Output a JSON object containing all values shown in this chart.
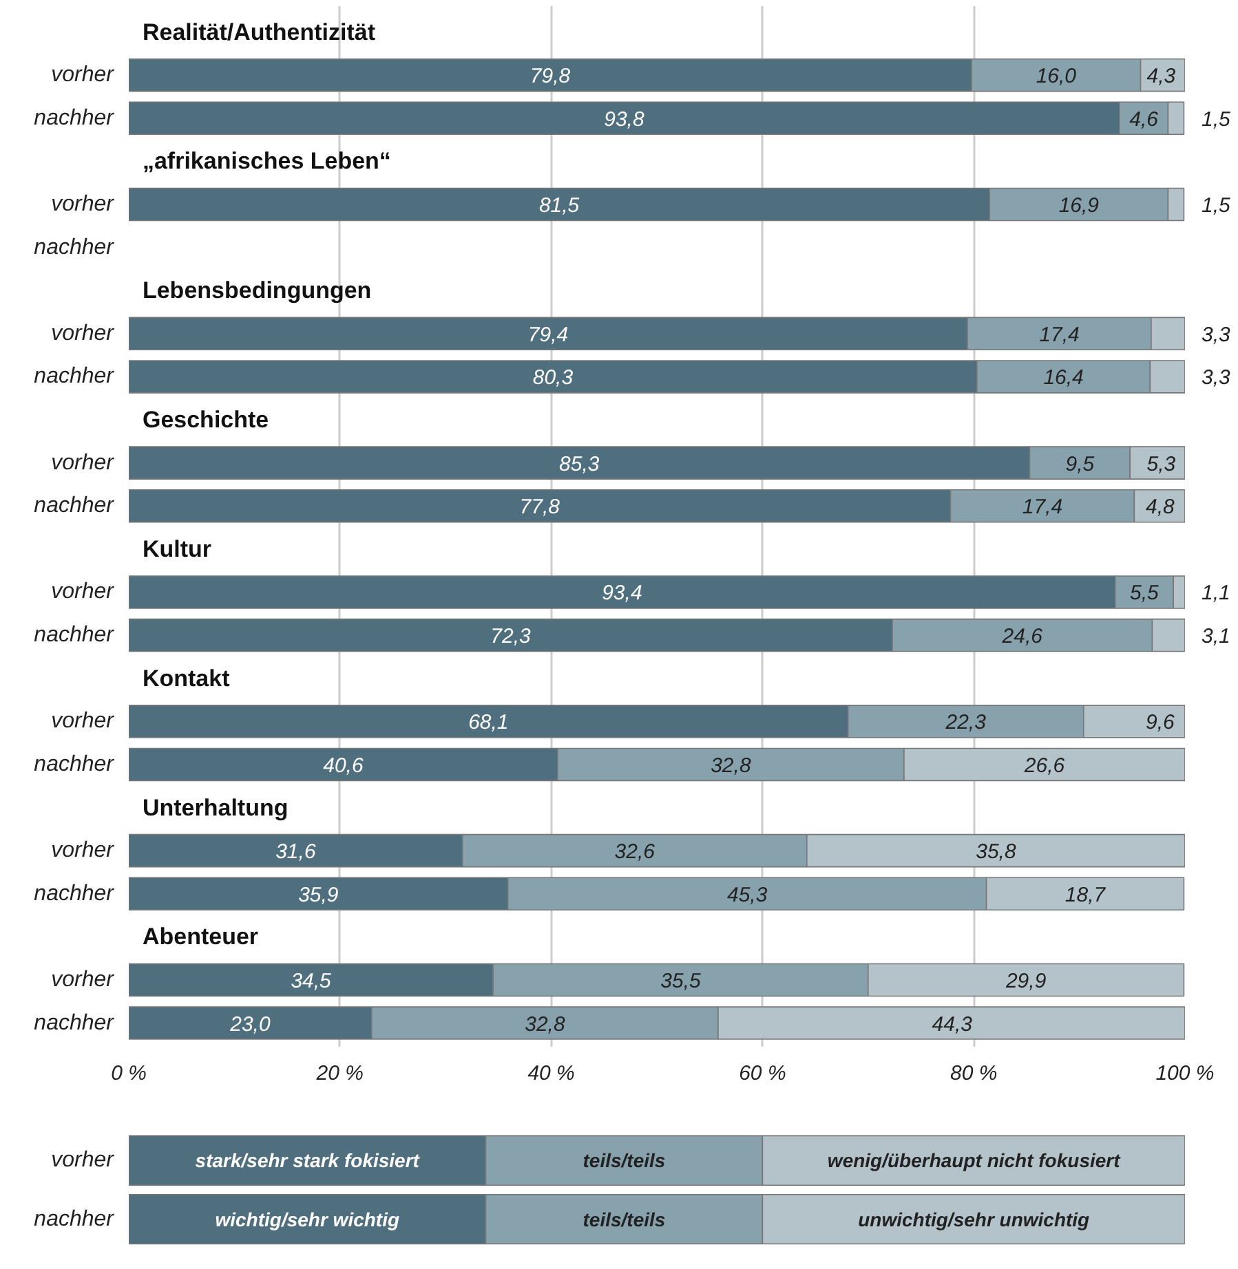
{
  "chart_data": {
    "type": "bar",
    "orientation": "horizontal",
    "stacked": true,
    "categories": [
      "vorher",
      "nachher",
      "vorher",
      "nachher",
      "vorher",
      "nachher",
      "vorher",
      "nachher",
      "vorher",
      "nachher",
      "vorher",
      "nachher",
      "vorher",
      "nachher",
      "vorher",
      "nachher"
    ],
    "series": [
      {
        "name": "stark/sehr stark fokisiert",
        "color": "#4f6f7f",
        "values": [
          79.8,
          93.8,
          81.5,
          null,
          79.4,
          80.3,
          85.3,
          77.8,
          93.4,
          72.3,
          68.1,
          40.6,
          31.6,
          35.9,
          34.5,
          23.0
        ],
        "value_labels": [
          "79,8",
          "93,8",
          "81,5",
          null,
          "79,4",
          "80,3",
          "85,3",
          "77,8",
          "93,4",
          "72,3",
          "68,1",
          "40,6",
          "31,6",
          "35,9",
          "34,5",
          "23,0"
        ]
      },
      {
        "name": "teils/teils",
        "color": "#87a2ad",
        "values": [
          16.0,
          4.6,
          16.9,
          null,
          17.4,
          16.4,
          9.5,
          17.4,
          5.5,
          24.6,
          22.3,
          32.8,
          32.6,
          45.3,
          35.5,
          32.8
        ],
        "value_labels": [
          "16,0",
          "4,6",
          "16,9",
          null,
          "17,4",
          "16,4",
          "9,5",
          "17,4",
          "5,5",
          "24,6",
          "22,3",
          "32,8",
          "32,6",
          "45,3",
          "35,5",
          "32,8"
        ]
      },
      {
        "name": "wenig/überhaupt nicht fokusiert",
        "color": "#b4c3c9",
        "values": [
          4.3,
          1.5,
          1.5,
          null,
          3.3,
          3.3,
          5.3,
          4.8,
          1.1,
          3.1,
          9.6,
          26.6,
          35.8,
          18.7,
          29.9,
          44.3
        ],
        "value_labels": [
          "4,3",
          "1,5",
          "1,5",
          null,
          "3,3",
          "3,3",
          "5,3",
          "4,8",
          "1,1",
          "3,1",
          "9,6",
          "26,6",
          "35,8",
          "18,7",
          "29,9",
          "44,3"
        ]
      }
    ],
    "annotations": [
      "Realität/Authentizität",
      "„afrikanisches Leben“",
      "Lebensbedingungen",
      "Geschichte",
      "Kultur",
      "Kontakt",
      "Unterhaltung",
      "Abenteuer",
      "wichtig/sehr wichtig",
      "teils/teils",
      "unwichtig/sehr unwichtig"
    ],
    "xlim": [
      0,
      100
    ],
    "xticks": [
      {
        "value": 0,
        "label": "0 %"
      },
      {
        "value": 20,
        "label": "20 %"
      },
      {
        "value": 40,
        "label": "40 %"
      },
      {
        "value": 60,
        "label": "60 %"
      },
      {
        "value": 80,
        "label": "80 %"
      },
      {
        "value": 100,
        "label": "100 %"
      }
    ],
    "grid": "x",
    "legend": "bottom",
    "data_labels": true
  }
}
